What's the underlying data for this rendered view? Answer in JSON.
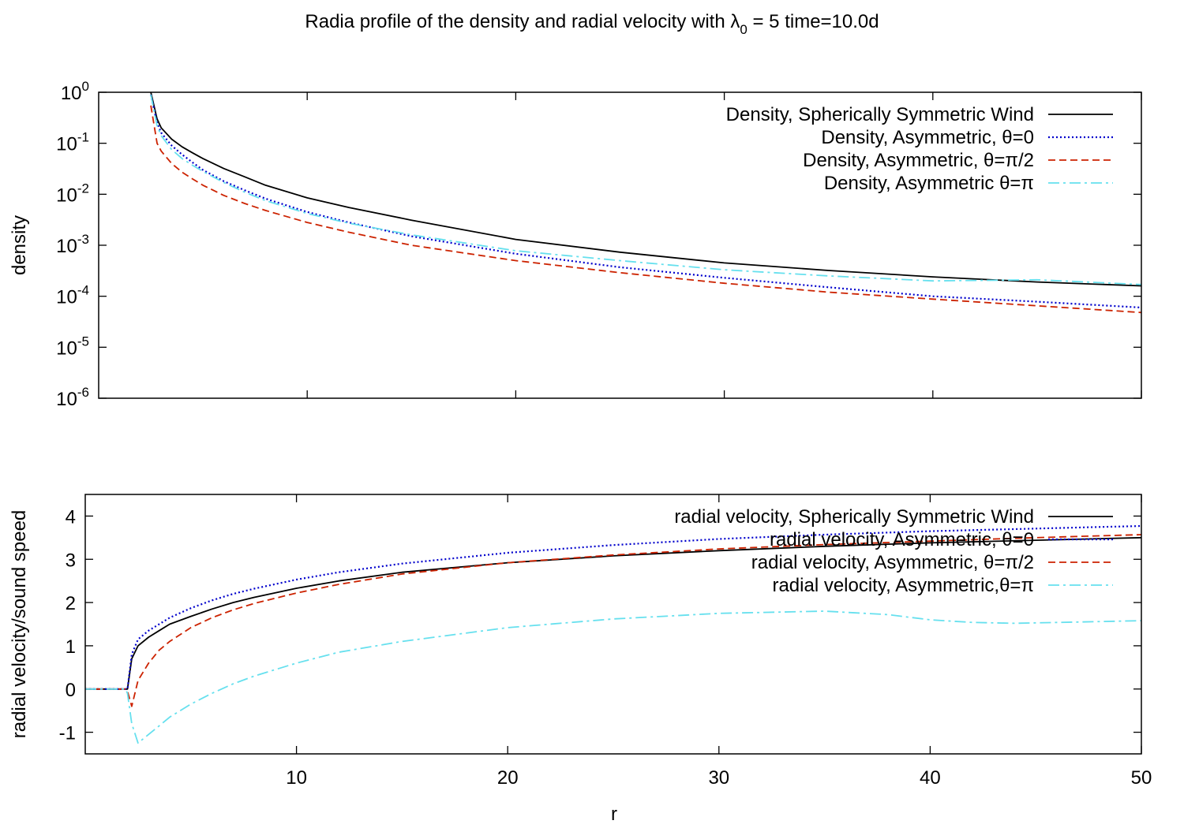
{
  "figure": {
    "title_prefix": "Radia profile of the density and radial velocity with λ",
    "title_sub": "0",
    "title_suffix": " = 5 time=10.0d",
    "xlabel": "r"
  },
  "chart_data": [
    {
      "type": "line",
      "panel": "top",
      "xlabel": "",
      "ylabel": "density",
      "xlim": [
        0,
        50
      ],
      "ylim": [
        1e-06,
        1
      ],
      "yscale": "log",
      "grid": false,
      "legend_position": "top-right",
      "y_ticks": [
        {
          "base": "10",
          "exp": "0"
        },
        {
          "base": "10",
          "exp": "-1"
        },
        {
          "base": "10",
          "exp": "-2"
        },
        {
          "base": "10",
          "exp": "-3"
        },
        {
          "base": "10",
          "exp": "-4"
        },
        {
          "base": "10",
          "exp": "-5"
        },
        {
          "base": "10",
          "exp": "-6"
        }
      ],
      "series": [
        {
          "name": "Density, Spherically Symmetric Wind",
          "color": "#000000",
          "dash": "solid",
          "x": [
            2.5,
            2.8,
            3.0,
            3.5,
            4.0,
            4.5,
            5.0,
            6,
            7,
            8,
            10,
            12,
            15,
            20,
            25,
            30,
            35,
            40,
            45,
            50
          ],
          "y": [
            1.0,
            0.3,
            0.2,
            0.12,
            0.085,
            0.065,
            0.05,
            0.032,
            0.022,
            0.015,
            0.0085,
            0.0055,
            0.0031,
            0.0013,
            0.00073,
            0.00045,
            0.00032,
            0.00024,
            0.00019,
            0.00016
          ]
        },
        {
          "name": "Density, Asymmetric, θ=0",
          "color": "#0000cc",
          "dash": "dotted",
          "x": [
            2.5,
            2.8,
            3.0,
            3.5,
            4.0,
            4.5,
            5.0,
            6,
            7,
            8,
            10,
            12,
            15,
            20,
            25,
            30,
            35,
            40,
            45,
            50
          ],
          "y": [
            0.9,
            0.25,
            0.16,
            0.09,
            0.06,
            0.042,
            0.03,
            0.018,
            0.012,
            0.0082,
            0.0045,
            0.0028,
            0.0015,
            0.00068,
            0.00037,
            0.00023,
            0.00015,
            0.0001,
            7.8e-05,
            6e-05
          ]
        },
        {
          "name": "Density, Asymmetric, θ=π/2",
          "color": "#cc2200",
          "dash": "dashed",
          "x": [
            2.5,
            2.8,
            3.0,
            3.5,
            4.0,
            4.5,
            5.0,
            6,
            7,
            8,
            10,
            12,
            15,
            20,
            25,
            30,
            35,
            40,
            45,
            50
          ],
          "y": [
            0.55,
            0.1,
            0.07,
            0.04,
            0.027,
            0.02,
            0.015,
            0.0095,
            0.0066,
            0.0048,
            0.0028,
            0.0018,
            0.001,
            0.0005,
            0.00029,
            0.00018,
            0.00012,
            8.8e-05,
            6.5e-05,
            4.8e-05
          ]
        },
        {
          "name": "Density, Asymmetric θ=π",
          "color": "#66e0ee",
          "dash": "dashdot",
          "x": [
            2.5,
            2.8,
            3.0,
            3.5,
            4.0,
            4.5,
            5.0,
            6,
            7,
            8,
            10,
            12,
            15,
            20,
            25,
            30,
            35,
            40,
            45,
            50
          ],
          "y": [
            0.9,
            0.22,
            0.14,
            0.075,
            0.05,
            0.037,
            0.028,
            0.017,
            0.011,
            0.0075,
            0.0042,
            0.0027,
            0.0016,
            0.00078,
            0.0005,
            0.00033,
            0.00025,
            0.0002,
            0.00021,
            0.00017
          ]
        }
      ]
    },
    {
      "type": "line",
      "panel": "bottom",
      "xlabel": "r",
      "ylabel": "radial velocity/sound speed",
      "xlim": [
        0,
        50
      ],
      "ylim": [
        -1.5,
        4.5
      ],
      "yscale": "linear",
      "grid": false,
      "legend_position": "top-right",
      "x_ticks": [
        10,
        20,
        30,
        40,
        50
      ],
      "y_ticks": [
        -1,
        0,
        1,
        2,
        3,
        4
      ],
      "series": [
        {
          "name": "radial velocity, Spherically Symmetric Wind",
          "color": "#000000",
          "dash": "solid",
          "x": [
            0,
            1.9,
            2.0,
            2.2,
            2.5,
            3.0,
            3.5,
            4.0,
            5,
            6,
            7,
            8,
            10,
            12,
            15,
            20,
            25,
            30,
            35,
            40,
            45,
            50
          ],
          "y": [
            0,
            0,
            0,
            0.7,
            1.0,
            1.2,
            1.35,
            1.5,
            1.68,
            1.85,
            2.0,
            2.12,
            2.33,
            2.5,
            2.7,
            2.92,
            3.08,
            3.2,
            3.3,
            3.38,
            3.44,
            3.5
          ]
        },
        {
          "name": "radial velocity, Asymmetric, θ=0",
          "color": "#0000cc",
          "dash": "dotted",
          "x": [
            0,
            1.9,
            2.0,
            2.2,
            2.5,
            3.0,
            3.5,
            4.0,
            5,
            6,
            7,
            8,
            10,
            12,
            15,
            20,
            25,
            30,
            35,
            40,
            45,
            50
          ],
          "y": [
            0,
            0,
            0,
            0.8,
            1.15,
            1.35,
            1.5,
            1.65,
            1.87,
            2.05,
            2.2,
            2.32,
            2.53,
            2.7,
            2.9,
            3.15,
            3.33,
            3.47,
            3.57,
            3.65,
            3.71,
            3.77
          ]
        },
        {
          "name": "radial velocity, Asymmetric, θ=π/2",
          "color": "#cc2200",
          "dash": "dashed",
          "x": [
            0,
            1.9,
            2.0,
            2.2,
            2.5,
            3.0,
            3.5,
            4.0,
            5,
            6,
            7,
            8,
            10,
            12,
            15,
            20,
            25,
            30,
            35,
            40,
            45,
            50
          ],
          "y": [
            0,
            0,
            -0.05,
            -0.4,
            0.2,
            0.6,
            0.9,
            1.1,
            1.42,
            1.65,
            1.83,
            1.98,
            2.22,
            2.42,
            2.66,
            2.92,
            3.1,
            3.24,
            3.34,
            3.42,
            3.5,
            3.57
          ]
        },
        {
          "name": "radial velocity, Asymmetric,θ=π",
          "color": "#66e0ee",
          "dash": "dashdot",
          "x": [
            0,
            1.9,
            2.0,
            2.2,
            2.5,
            3.0,
            3.5,
            4.0,
            5,
            6,
            7,
            8,
            10,
            12,
            15,
            20,
            25,
            30,
            35,
            38,
            40,
            42,
            44,
            47,
            50
          ],
          "y": [
            0,
            0,
            -0.1,
            -0.8,
            -1.25,
            -1.05,
            -0.85,
            -0.65,
            -0.35,
            -0.1,
            0.12,
            0.3,
            0.6,
            0.85,
            1.1,
            1.42,
            1.62,
            1.75,
            1.8,
            1.72,
            1.6,
            1.54,
            1.52,
            1.55,
            1.58
          ]
        }
      ]
    }
  ]
}
